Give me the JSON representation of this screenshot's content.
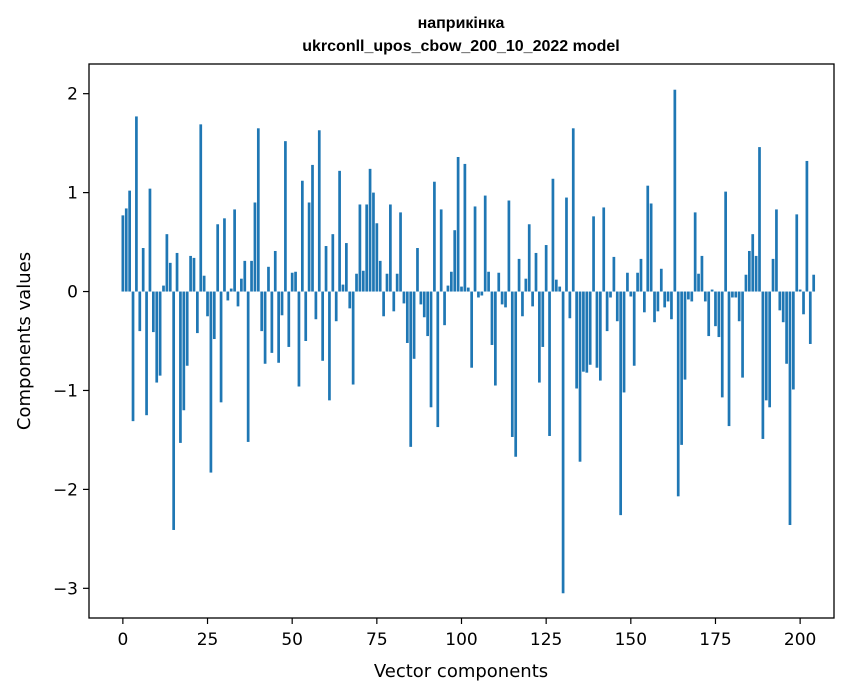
{
  "chart_data": {
    "type": "bar",
    "title": "наприкінка",
    "subtitle": "ukrconll_upos_cbow_200_10_2022 model",
    "xlabel": "Vector components",
    "ylabel": "Components values",
    "xlim": [
      -10,
      210
    ],
    "ylim": [
      -3.3,
      2.3
    ],
    "xticks": [
      0,
      25,
      50,
      75,
      100,
      125,
      150,
      175,
      200
    ],
    "yticks": [
      -3,
      -2,
      -1,
      0,
      1,
      2
    ],
    "ytick_labels": [
      "−3",
      "−2",
      "−1",
      "0",
      "1",
      "2"
    ],
    "bar_color": "#1f77b4",
    "grid": false,
    "values": [
      0.77,
      0.84,
      1.02,
      -1.31,
      1.77,
      -0.4,
      0.44,
      -1.25,
      1.04,
      -0.41,
      -0.92,
      -0.85,
      0.06,
      0.58,
      0.29,
      -2.41,
      0.39,
      -1.53,
      -1.2,
      -0.75,
      0.36,
      0.34,
      -0.42,
      1.69,
      0.16,
      -0.25,
      -1.83,
      -0.48,
      0.68,
      -1.12,
      0.74,
      -0.09,
      0.03,
      0.83,
      -0.15,
      0.13,
      0.31,
      -1.52,
      0.31,
      0.9,
      1.65,
      -0.4,
      -0.73,
      0.25,
      -0.62,
      0.41,
      -0.72,
      -0.24,
      1.52,
      -0.56,
      0.19,
      0.2,
      -0.96,
      1.12,
      -0.5,
      0.9,
      1.28,
      -0.28,
      1.63,
      -0.7,
      0.46,
      -1.1,
      0.58,
      -0.3,
      1.22,
      0.07,
      0.49,
      -0.17,
      -0.94,
      0.18,
      0.88,
      0.21,
      0.88,
      1.24,
      1.0,
      0.69,
      0.31,
      -0.25,
      0.18,
      0.88,
      -0.2,
      0.18,
      0.8,
      -0.12,
      -0.52,
      -1.57,
      -0.68,
      0.44,
      -0.13,
      -0.26,
      -0.45,
      -1.17,
      1.11,
      -1.37,
      0.83,
      -0.34,
      0.06,
      0.2,
      0.62,
      1.36,
      0.05,
      1.29,
      0.04,
      -0.77,
      0.86,
      -0.06,
      -0.04,
      0.97,
      0.2,
      -0.54,
      -0.95,
      0.19,
      -0.13,
      -0.16,
      0.92,
      -1.47,
      -1.67,
      0.33,
      -0.25,
      0.13,
      0.68,
      -0.15,
      0.39,
      -0.92,
      -0.56,
      0.47,
      -1.46,
      1.14,
      0.12,
      0.05,
      -3.05,
      0.95,
      -0.27,
      1.65,
      -0.98,
      -1.72,
      -0.81,
      -0.82,
      -0.74,
      0.76,
      -0.77,
      -0.9,
      0.85,
      -0.4,
      -0.06,
      0.35,
      -0.3,
      -2.26,
      -1.02,
      0.19,
      -0.05,
      -0.75,
      0.19,
      0.33,
      -0.21,
      1.07,
      0.89,
      -0.31,
      -0.2,
      0.23,
      -0.16,
      -0.1,
      -0.28,
      2.04,
      -2.07,
      -1.55,
      -0.89,
      -0.08,
      -0.1,
      0.8,
      0.18,
      0.36,
      -0.1,
      -0.45,
      0.02,
      -0.35,
      -0.46,
      -1.07,
      1.01,
      -1.36,
      -0.06,
      -0.06,
      -0.3,
      -0.87,
      0.17,
      0.41,
      0.58,
      0.36,
      1.46,
      -1.49,
      -1.1,
      -1.17,
      0.33,
      0.83,
      -0.19,
      -0.31,
      -0.73,
      -2.36,
      -0.99,
      0.78,
      0.02,
      -0.23,
      1.32,
      -0.53,
      0.17
    ]
  }
}
